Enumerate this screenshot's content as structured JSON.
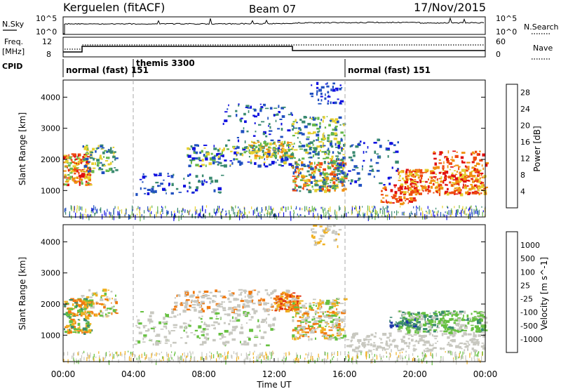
{
  "header": {
    "station": "Kerguelen (fitACF)",
    "beam": "Beam 07",
    "date": "17/Nov/2015"
  },
  "panels": {
    "nsky": {
      "label": "N.Sky",
      "ticks": [
        "10^5",
        "10^0"
      ],
      "right_label": "N.Search",
      "right_ticks": [
        "10^5",
        "10^0"
      ]
    },
    "freq": {
      "label_line1": "Freq.",
      "label_line2": "[MHz]",
      "ticks": [
        "12",
        "8"
      ],
      "right_label": "Nave",
      "right_ticks": [
        "60",
        "0"
      ]
    },
    "cpid": {
      "label": "CPID",
      "segments": [
        "normal (fast) 151",
        "themis 3300",
        "normal (fast) 151"
      ]
    }
  },
  "chart_data": [
    {
      "type": "heatmap",
      "name": "power",
      "ylabel": "Slant Range [km]",
      "yticks": [
        "1000",
        "2000",
        "3000",
        "4000"
      ],
      "ylim": [
        150,
        4550
      ],
      "colorbar_label": "Power [dB]",
      "colorbar_ticks": [
        "4",
        "8",
        "12",
        "16",
        "20",
        "24",
        "28"
      ],
      "colorbar_range": [
        0,
        30
      ],
      "colors": [
        "#1010e0",
        "#2050c0",
        "#3a8a70",
        "#66b84a",
        "#e6d030",
        "#f09010",
        "#ee4a10",
        "#e01010"
      ]
    },
    {
      "type": "heatmap",
      "name": "velocity",
      "ylabel": "Slant Range [km]",
      "yticks": [
        "1000",
        "2000",
        "3000",
        "4000"
      ],
      "ylim": [
        150,
        4550
      ],
      "colorbar_label": "Velocity [m s^-1]",
      "colorbar_ticks": [
        "1000",
        "500",
        "100",
        "25",
        "-25",
        "-100",
        "-500",
        "-1000"
      ],
      "colors": [
        "#1f3aa8",
        "#2a6fb0",
        "#3a8a70",
        "#66c040",
        "#c8c8c0",
        "#f0b020",
        "#f07a10",
        "#e03010",
        "#e80808"
      ]
    }
  ],
  "x_axis": {
    "label": "Time UT",
    "ticks": [
      "00:00",
      "04:00",
      "08:00",
      "12:00",
      "16:00",
      "20:00",
      "00:00"
    ],
    "range_hours": [
      0,
      24
    ]
  }
}
